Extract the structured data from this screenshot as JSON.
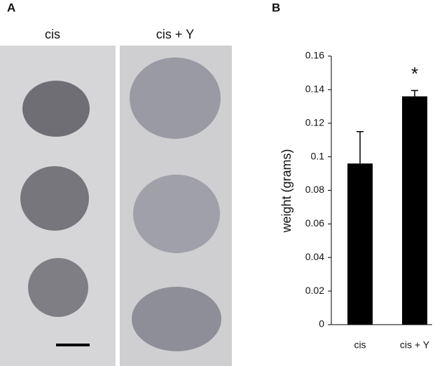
{
  "panel_a": {
    "label": "A",
    "columns": [
      "cis",
      "cis + Y"
    ]
  },
  "chart_data": {
    "type": "bar",
    "label": "B",
    "ylabel": "weight (grams)",
    "categories": [
      "cis",
      "cis + Y"
    ],
    "values": [
      0.096,
      0.136
    ],
    "errors": [
      0.019,
      0.0035
    ],
    "annotations": [
      {
        "category": 1,
        "text": "*"
      }
    ],
    "color": "#000000",
    "ylim": [
      0,
      0.16
    ],
    "yticks": [
      0,
      0.02,
      0.04,
      0.06,
      0.08,
      0.1,
      0.12,
      0.14,
      0.16
    ],
    "grid": false
  }
}
